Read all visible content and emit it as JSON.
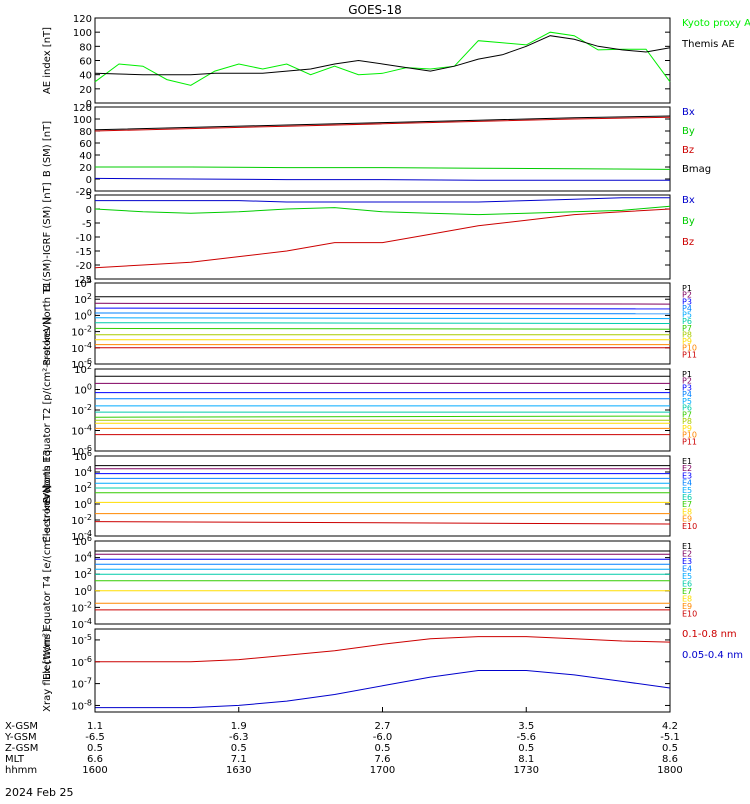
{
  "title": "GOES-18",
  "date_label": "2024 Feb 25",
  "footer": {
    "rows": [
      {
        "label": "X-GSM",
        "values": [
          "1.1",
          "1.9",
          "2.7",
          "3.5",
          "4.2"
        ]
      },
      {
        "label": "Y-GSM",
        "values": [
          "-6.5",
          "-6.3",
          "-6.0",
          "-5.6",
          "-5.1"
        ]
      },
      {
        "label": "Z-GSM",
        "values": [
          "0.5",
          "0.5",
          "0.5",
          "0.5",
          "0.5"
        ]
      },
      {
        "label": "MLT",
        "values": [
          "6.6",
          "7.1",
          "7.6",
          "8.1",
          "8.6"
        ]
      },
      {
        "label": "hhmm",
        "values": [
          "1600",
          "1630",
          "1700",
          "1730",
          "1800"
        ]
      }
    ]
  },
  "chart_data": [
    {
      "id": "ae",
      "type": "line",
      "ylabel": "AE index [nT]",
      "ylim": [
        0,
        120
      ],
      "yticks": [
        "0",
        "20",
        "40",
        "60",
        "80",
        "100",
        "120"
      ],
      "x": [
        0,
        5,
        10,
        15,
        20,
        25,
        30,
        35,
        40,
        45,
        50,
        55,
        60,
        65,
        70,
        75,
        80,
        85,
        90,
        95,
        100,
        105,
        110,
        115,
        120
      ],
      "series": [
        {
          "name": "Kyoto proxy AE",
          "color": "#00ee00",
          "values": [
            30,
            55,
            52,
            33,
            25,
            45,
            55,
            48,
            55,
            40,
            52,
            40,
            42,
            50,
            48,
            52,
            88,
            85,
            82,
            100,
            95,
            75,
            76,
            76,
            30
          ]
        },
        {
          "name": "Themis AE",
          "color": "#000000",
          "values": [
            42,
            41,
            40,
            40,
            40,
            42,
            42,
            42,
            45,
            48,
            55,
            60,
            55,
            50,
            45,
            52,
            62,
            68,
            80,
            95,
            90,
            80,
            75,
            72,
            78
          ]
        }
      ]
    },
    {
      "id": "bsm",
      "type": "line",
      "ylabel": "B (SM) [nT]",
      "ylim": [
        -20,
        120
      ],
      "yticks": [
        "-20",
        "0",
        "20",
        "40",
        "60",
        "80",
        "100",
        "120"
      ],
      "x": [
        0,
        20,
        40,
        60,
        80,
        100,
        120
      ],
      "series": [
        {
          "name": "Bx",
          "color": "#0000cc",
          "values": [
            1,
            0,
            -1,
            -1,
            -2,
            -2,
            -2
          ]
        },
        {
          "name": "By",
          "color": "#00cc00",
          "values": [
            20,
            20,
            19,
            19,
            18,
            17,
            16
          ]
        },
        {
          "name": "Bz",
          "color": "#cc0000",
          "values": [
            80,
            84,
            88,
            92,
            96,
            100,
            103
          ]
        },
        {
          "name": "Bmag",
          "color": "#000000",
          "values": [
            82,
            86,
            90,
            94,
            98,
            102,
            105
          ]
        }
      ]
    },
    {
      "id": "bigrf",
      "type": "line",
      "ylabel": "B (SM)-IGRF (SM) [nT]",
      "ylim": [
        -25,
        5
      ],
      "yticks": [
        "-25",
        "-20",
        "-15",
        "-10",
        "-5",
        "0",
        "5"
      ],
      "x": [
        0,
        10,
        20,
        30,
        40,
        50,
        60,
        70,
        80,
        90,
        100,
        110,
        120
      ],
      "series": [
        {
          "name": "Bx",
          "color": "#0000cc",
          "values": [
            3,
            3,
            3,
            3,
            2.5,
            2.5,
            2.5,
            2.5,
            2.5,
            3,
            3.5,
            4,
            4
          ]
        },
        {
          "name": "By",
          "color": "#00cc00",
          "values": [
            0,
            -1,
            -1.5,
            -1,
            0,
            0.5,
            -1,
            -1.5,
            -2,
            -1.5,
            -1,
            -0.5,
            1
          ]
        },
        {
          "name": "Bz",
          "color": "#cc0000",
          "values": [
            -21,
            -20,
            -19,
            -17,
            -15,
            -12,
            -12,
            -9,
            -6,
            -4,
            -2,
            -1,
            0
          ]
        }
      ]
    },
    {
      "id": "pn",
      "type": "line",
      "ylabel": "Protons North T1",
      "ylog": true,
      "ylim": [
        -6,
        4
      ],
      "yticks": [
        "10^-6",
        "10^-4",
        "10^-2",
        "10^0",
        "10^2",
        "10^4"
      ],
      "x": [
        0,
        120
      ],
      "series": [
        {
          "name": "P1",
          "color": "#000000",
          "values": [
            2.3,
            2.3
          ]
        },
        {
          "name": "P2",
          "color": "#800060",
          "values": [
            1.5,
            1.4
          ]
        },
        {
          "name": "P3",
          "color": "#0000ff",
          "values": [
            0.9,
            0.8
          ]
        },
        {
          "name": "P4",
          "color": "#0080ff",
          "values": [
            0.3,
            0.2
          ]
        },
        {
          "name": "P5",
          "color": "#00aaff",
          "values": [
            -0.3,
            -0.4
          ]
        },
        {
          "name": "P6",
          "color": "#00ccaa",
          "values": [
            -0.9,
            -1
          ]
        },
        {
          "name": "P7",
          "color": "#33cc00",
          "values": [
            -1.6,
            -1.7
          ]
        },
        {
          "name": "P8",
          "color": "#aacc00",
          "values": [
            -2.4,
            -2.4
          ]
        },
        {
          "name": "P9",
          "color": "#ffdd00",
          "values": [
            -3,
            -3
          ]
        },
        {
          "name": "P10",
          "color": "#ff8800",
          "values": [
            -3.6,
            -3.6
          ]
        },
        {
          "name": "P11",
          "color": "#cc0000",
          "values": [
            -4,
            -4
          ]
        }
      ]
    },
    {
      "id": "pe",
      "type": "line",
      "ylabel": "Protons Equator T2 [p/(cm²-s-sr-keV)]",
      "ylog": true,
      "ylim": [
        -6,
        2
      ],
      "yticks": [
        "10^-6",
        "10^-4",
        "10^-2",
        "10^0",
        "10^2"
      ],
      "x": [
        0,
        120
      ],
      "series": [
        {
          "name": "P1",
          "color": "#000000",
          "values": [
            1.3,
            1.3
          ]
        },
        {
          "name": "P2",
          "color": "#800060",
          "values": [
            0.6,
            0.6
          ]
        },
        {
          "name": "P3",
          "color": "#0000ff",
          "values": [
            -0.3,
            -0.3
          ]
        },
        {
          "name": "P4",
          "color": "#0080ff",
          "values": [
            -0.9,
            -0.9
          ]
        },
        {
          "name": "P5",
          "color": "#00aaff",
          "values": [
            -1.6,
            -1.6
          ]
        },
        {
          "name": "P6",
          "color": "#00ccaa",
          "values": [
            -2.2,
            -2.2
          ]
        },
        {
          "name": "P7",
          "color": "#33cc00",
          "values": [
            -2.7,
            -2.6
          ]
        },
        {
          "name": "P8",
          "color": "#aacc00",
          "values": [
            -3,
            -3
          ]
        },
        {
          "name": "P9",
          "color": "#ffdd00",
          "values": [
            -3.3,
            -3.3
          ]
        },
        {
          "name": "P10",
          "color": "#ff8800",
          "values": [
            -3.8,
            -3.8
          ]
        },
        {
          "name": "P11",
          "color": "#cc0000",
          "values": [
            -4.4,
            -4.4
          ]
        }
      ]
    },
    {
      "id": "en",
      "type": "line",
      "ylabel": "Electrons North T3",
      "ylog": true,
      "ylim": [
        -4,
        6
      ],
      "yticks": [
        "10^-4",
        "10^-2",
        "10^0",
        "10^2",
        "10^4",
        "10^6"
      ],
      "x": [
        0,
        120
      ],
      "series": [
        {
          "name": "E1",
          "color": "#000000",
          "values": [
            4.8,
            4.8
          ]
        },
        {
          "name": "E2",
          "color": "#800060",
          "values": [
            4.4,
            4.4
          ]
        },
        {
          "name": "E3",
          "color": "#0000ff",
          "values": [
            3.8,
            3.8
          ]
        },
        {
          "name": "E4",
          "color": "#0080ff",
          "values": [
            3.2,
            3.2
          ]
        },
        {
          "name": "E5",
          "color": "#00aaff",
          "values": [
            2.6,
            2.6
          ]
        },
        {
          "name": "E6",
          "color": "#00ccaa",
          "values": [
            2,
            2
          ]
        },
        {
          "name": "E7",
          "color": "#33cc00",
          "values": [
            1.4,
            1.4
          ]
        },
        {
          "name": "E8",
          "color": "#ffdd00",
          "values": [
            0.2,
            0.2
          ]
        },
        {
          "name": "E9",
          "color": "#ff8800",
          "values": [
            -1.2,
            -1.2
          ]
        },
        {
          "name": "E10",
          "color": "#cc0000",
          "values": [
            -2.2,
            -2.5
          ]
        }
      ]
    },
    {
      "id": "ee",
      "type": "line",
      "ylabel": "Electrons Equator T4 [e/(cm²-s-sr-keV)]",
      "ylog": true,
      "ylim": [
        -4,
        6
      ],
      "yticks": [
        "10^-4",
        "10^-2",
        "10^0",
        "10^2",
        "10^4",
        "10^6"
      ],
      "x": [
        0,
        120
      ],
      "series": [
        {
          "name": "E1",
          "color": "#000000",
          "values": [
            4.8,
            4.8
          ]
        },
        {
          "name": "E2",
          "color": "#800060",
          "values": [
            4.4,
            4.4
          ]
        },
        {
          "name": "E3",
          "color": "#0000ff",
          "values": [
            3.8,
            3.8
          ]
        },
        {
          "name": "E4",
          "color": "#0080ff",
          "values": [
            3.2,
            3.2
          ]
        },
        {
          "name": "E5",
          "color": "#00aaff",
          "values": [
            2.6,
            2.6
          ]
        },
        {
          "name": "E6",
          "color": "#00ccaa",
          "values": [
            2,
            2
          ]
        },
        {
          "name": "E7",
          "color": "#33cc00",
          "values": [
            1.2,
            1.2
          ]
        },
        {
          "name": "E8",
          "color": "#ffdd00",
          "values": [
            0,
            0
          ]
        },
        {
          "name": "E9",
          "color": "#ff8800",
          "values": [
            -1.5,
            -1.5
          ]
        },
        {
          "name": "E10",
          "color": "#cc0000",
          "values": [
            -2.3,
            -2.3
          ]
        }
      ]
    },
    {
      "id": "xray",
      "type": "line",
      "ylabel": "Xray flux [W/m²]",
      "ylog": true,
      "ylim": [
        -8.3,
        -4.5
      ],
      "yticks": [
        "10^-8",
        "10^-7",
        "10^-6",
        "10^-5"
      ],
      "x": [
        0,
        10,
        20,
        30,
        40,
        50,
        60,
        70,
        80,
        90,
        100,
        110,
        120
      ],
      "series": [
        {
          "name": "0.1-0.8 nm",
          "color": "#cc0000",
          "values": [
            -6,
            -6,
            -6,
            -5.9,
            -5.7,
            -5.5,
            -5.2,
            -4.95,
            -4.85,
            -4.85,
            -4.95,
            -5.05,
            -5.1
          ]
        },
        {
          "name": "0.05-0.4 nm",
          "color": "#0000cc",
          "values": [
            -8.1,
            -8.1,
            -8.1,
            -8,
            -7.8,
            -7.5,
            -7.1,
            -6.7,
            -6.4,
            -6.4,
            -6.6,
            -6.9,
            -7.2
          ]
        }
      ]
    }
  ]
}
